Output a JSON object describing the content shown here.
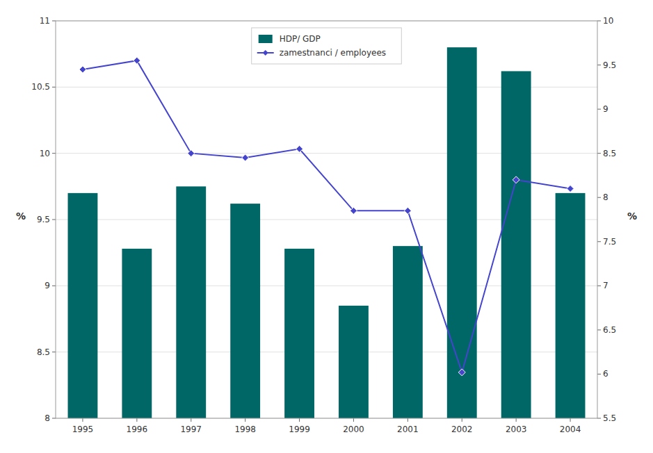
{
  "chart_data": {
    "type": "bar",
    "categories": [
      "1995",
      "1996",
      "1997",
      "1998",
      "1999",
      "2000",
      "2001",
      "2002",
      "2003",
      "2004"
    ],
    "series": [
      {
        "name": "HDP/ GDP",
        "type": "bar",
        "color": "#006666",
        "values": [
          9.7,
          9.28,
          9.75,
          9.62,
          9.28,
          8.85,
          9.3,
          10.8,
          10.62,
          9.7
        ]
      },
      {
        "name": "zamestnanci / employees",
        "type": "line",
        "axis": "y2",
        "color": "#4444CC",
        "marker": "diamond",
        "values": [
          9.45,
          9.55,
          8.5,
          8.45,
          8.55,
          7.85,
          7.85,
          6.02,
          8.2,
          8.1
        ]
      }
    ],
    "ylabel": "%",
    "y2label": "%",
    "ylim": [
      8,
      11
    ],
    "yticks": [
      8,
      8.5,
      9,
      9.5,
      10,
      10.5,
      11
    ],
    "y2lim": [
      5.5,
      10
    ],
    "y2ticks": [
      5.5,
      6,
      6.5,
      7,
      7.5,
      8,
      8.5,
      9,
      9.5,
      10
    ],
    "grid": true,
    "legend": "upper center"
  }
}
